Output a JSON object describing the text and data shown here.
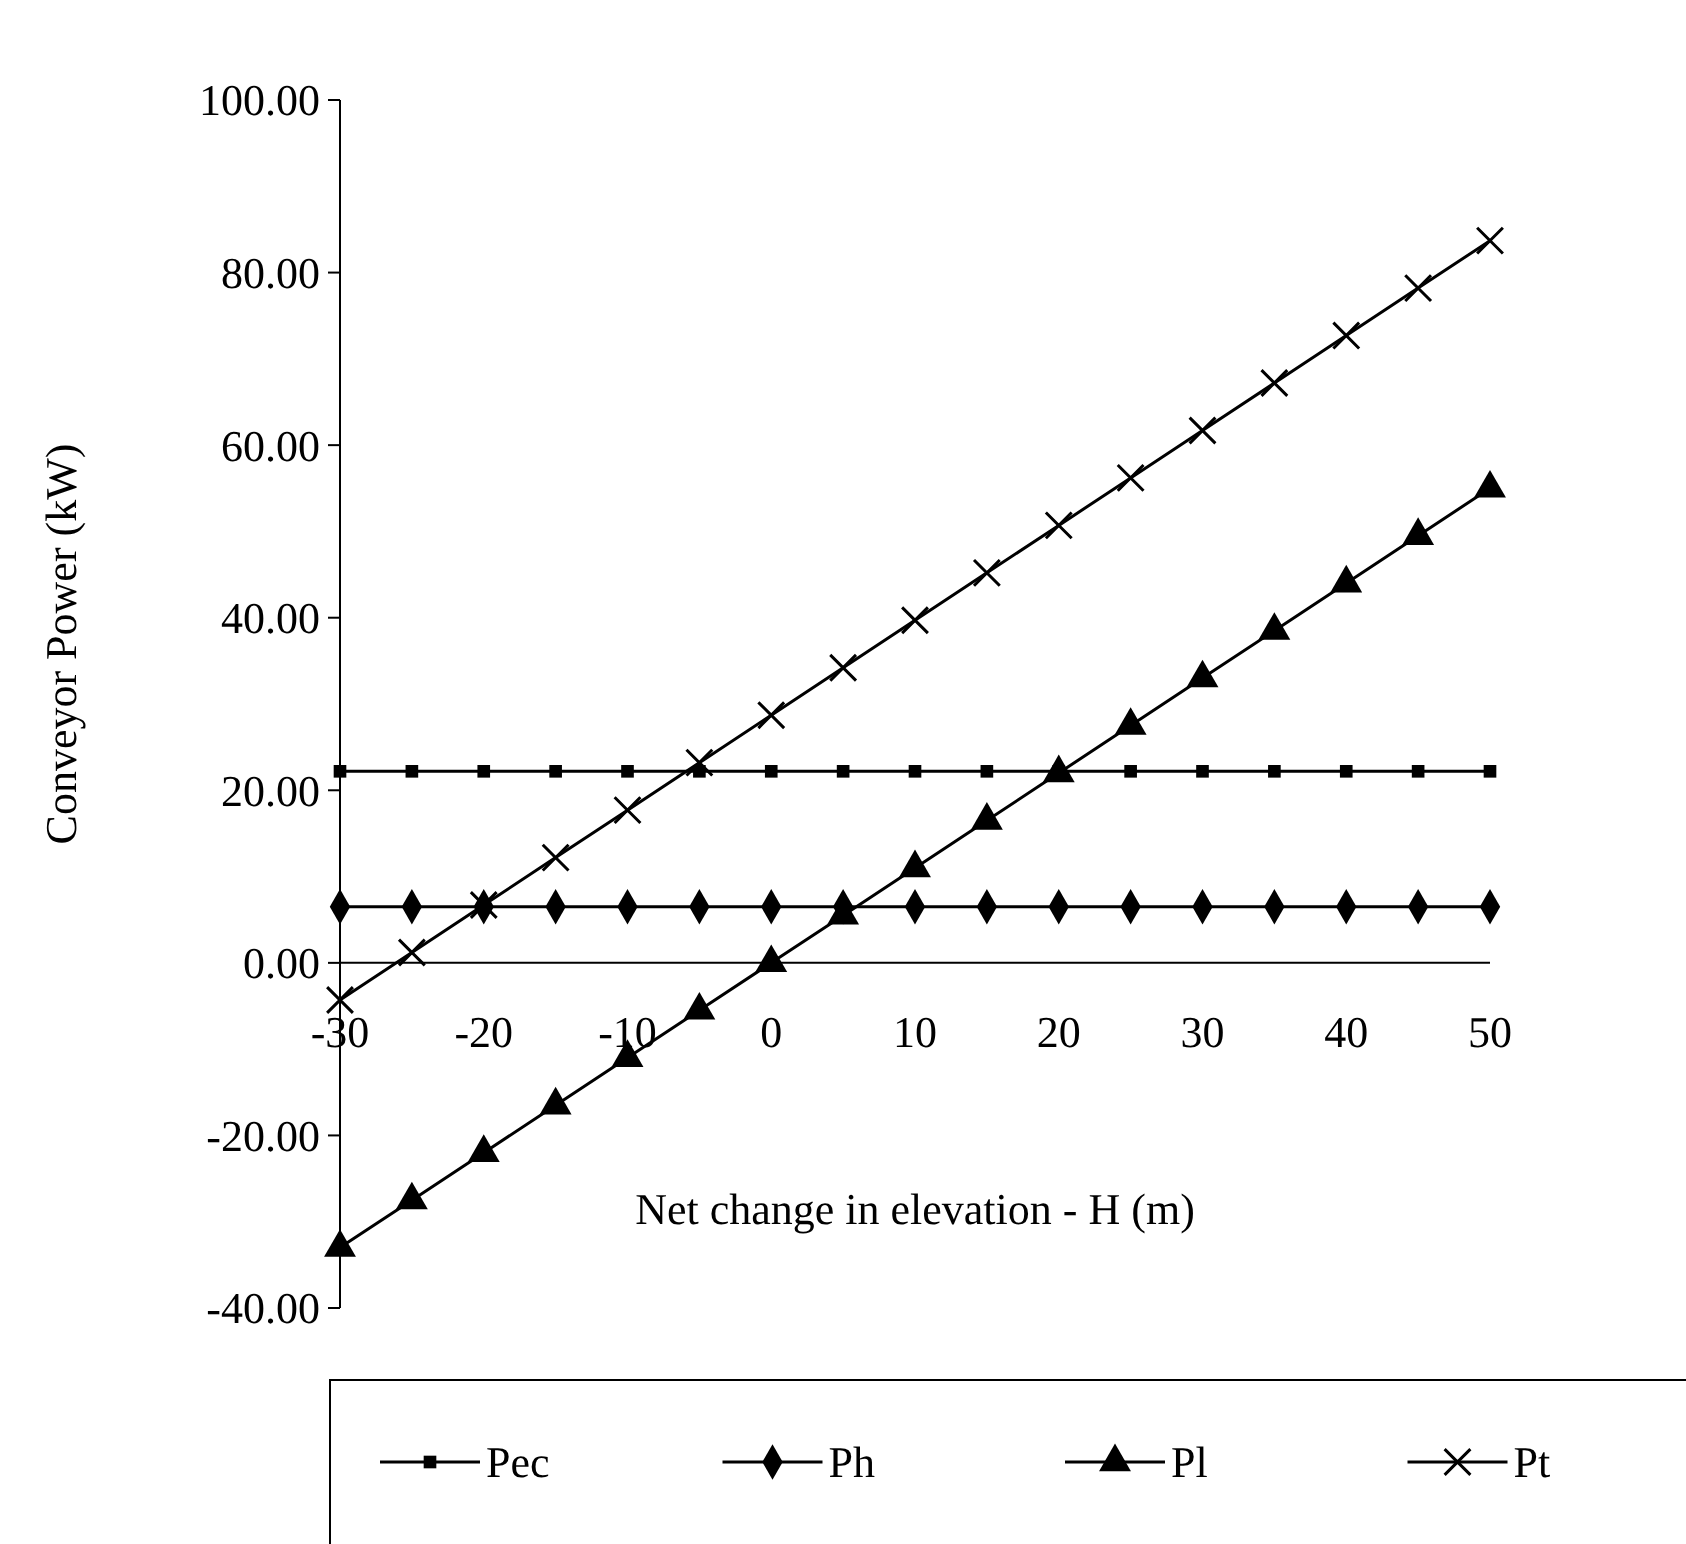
{
  "chart_data": {
    "type": "line",
    "xlabel": "Net change in elevation - H (m)",
    "ylabel": "Conveyor Power (kW)",
    "x": [
      -30,
      -25,
      -20,
      -15,
      -10,
      -5,
      0,
      5,
      10,
      15,
      20,
      25,
      30,
      35,
      40,
      45,
      50
    ],
    "xlim": [
      -30,
      50
    ],
    "xticks": [
      -30,
      -20,
      -10,
      0,
      10,
      20,
      30,
      40,
      50
    ],
    "ylim": [
      -40,
      100
    ],
    "yticks": [
      {
        "value": -40,
        "label": "-40.00"
      },
      {
        "value": -20,
        "label": "-20.00"
      },
      {
        "value": 0,
        "label": "0.00"
      },
      {
        "value": 20,
        "label": "20.00"
      },
      {
        "value": 40,
        "label": "40.00"
      },
      {
        "value": 60,
        "label": "60.00"
      },
      {
        "value": 80,
        "label": "80.00"
      },
      {
        "value": 100,
        "label": "100.00"
      }
    ],
    "grid": false,
    "legend": "bottom",
    "line_style": "solid",
    "series": [
      {
        "name": "Pec",
        "color": "#000000",
        "marker": "square",
        "values": [
          22.2,
          22.2,
          22.2,
          22.2,
          22.2,
          22.2,
          22.2,
          22.2,
          22.2,
          22.2,
          22.2,
          22.2,
          22.2,
          22.2,
          22.2,
          22.2,
          22.2
        ]
      },
      {
        "name": "Ph",
        "color": "#000000",
        "marker": "diamond",
        "values": [
          6.5,
          6.5,
          6.5,
          6.5,
          6.5,
          6.5,
          6.5,
          6.5,
          6.5,
          6.5,
          6.5,
          6.5,
          6.5,
          6.5,
          6.5,
          6.5,
          6.5
        ]
      },
      {
        "name": "Pl",
        "color": "#000000",
        "marker": "triangle",
        "values": [
          -33,
          -27.5,
          -22,
          -16.5,
          -11,
          -5.5,
          0,
          5.5,
          11,
          16.5,
          22,
          27.5,
          33,
          38.5,
          44,
          49.5,
          55
        ]
      },
      {
        "name": "Pt",
        "color": "#000000",
        "marker": "cross",
        "values": [
          -4.3,
          1.2,
          6.7,
          12.2,
          17.7,
          23.2,
          28.7,
          34.2,
          39.7,
          45.2,
          50.7,
          56.2,
          61.7,
          67.2,
          72.7,
          78.2,
          83.7
        ]
      }
    ]
  }
}
